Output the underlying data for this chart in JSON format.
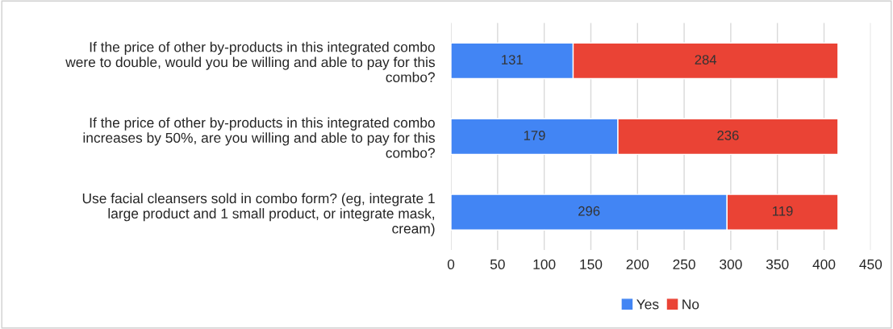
{
  "chart_data": {
    "type": "bar",
    "orientation": "horizontal",
    "stacked": true,
    "categories": [
      "If the price of other by-products in this integrated combo\nwere to double, would you be willing and able to pay for this\ncombo?",
      "If the price of other by-products in this integrated combo\nincreases by 50%, are you willing and able to pay for this\ncombo?",
      "Use facial cleansers sold in combo form? (eg, integrate 1\nlarge product and 1 small product, or integrate mask,\ncream)"
    ],
    "series": [
      {
        "name": "Yes",
        "color": "#4285f4",
        "values": [
          131,
          179,
          296
        ]
      },
      {
        "name": "No",
        "color": "#ea4335",
        "values": [
          284,
          236,
          119
        ]
      }
    ],
    "xlim": [
      0,
      450
    ],
    "xticks": [
      0,
      50,
      100,
      150,
      200,
      250,
      300,
      350,
      400,
      450
    ],
    "grid": "x",
    "legend": "bottom",
    "data_labels": true
  }
}
